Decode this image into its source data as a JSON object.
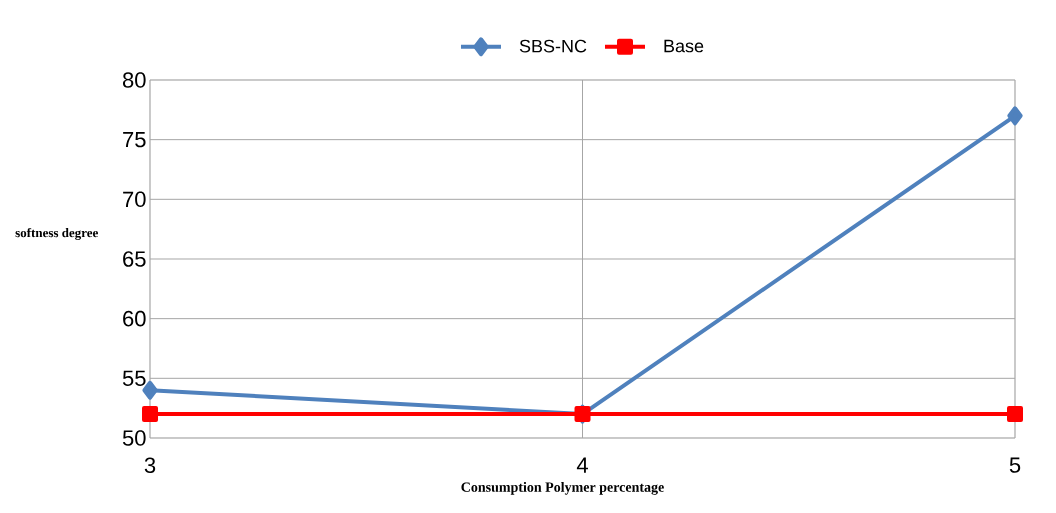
{
  "chart_data": {
    "type": "line",
    "xlabel": "Consumption Polymer percentage",
    "ylabel": "softness degree",
    "x": [
      3,
      4,
      5
    ],
    "series": [
      {
        "name": "SBS-NC",
        "color": "#4f81bd",
        "marker": "diamond",
        "values": [
          54,
          52,
          77
        ]
      },
      {
        "name": "Base",
        "color": "#ff0000",
        "marker": "square",
        "values": [
          52,
          52,
          52
        ]
      }
    ],
    "xlim": [
      3,
      5
    ],
    "xticks": [
      3,
      4,
      5
    ],
    "ylim": [
      50,
      80
    ],
    "yticks": [
      50,
      55,
      60,
      65,
      70,
      75,
      80
    ],
    "grid": true,
    "legend": "top",
    "line_style": "solid"
  }
}
